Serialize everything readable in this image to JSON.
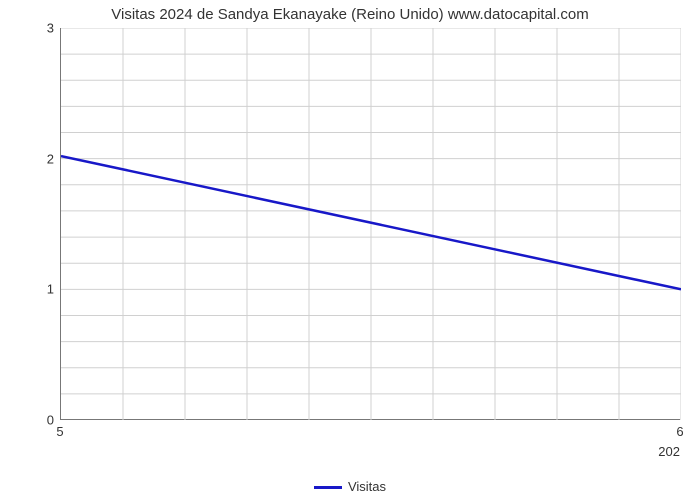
{
  "chart": {
    "type": "line",
    "title": "Visitas 2024 de Sandya Ekanayake (Reino Unido) www.datocapital.com",
    "title_fontsize": 15,
    "x": {
      "min": 5,
      "max": 6,
      "ticks": [
        5,
        6
      ],
      "grid_steps": 11
    },
    "y": {
      "min": 0,
      "max": 3,
      "ticks": [
        0,
        1,
        2,
        3
      ],
      "grid_steps": 16
    },
    "series": {
      "label": "Visitas",
      "color": "#1818c8",
      "line_width": 2.5,
      "points": [
        {
          "x": 5,
          "y": 2.02
        },
        {
          "x": 6,
          "y": 1.0
        }
      ]
    },
    "year_label": "202",
    "plot_bg": "#ffffff",
    "grid_color": "#d0d0d0",
    "axis_color": "#777777",
    "text_color": "#333333"
  }
}
